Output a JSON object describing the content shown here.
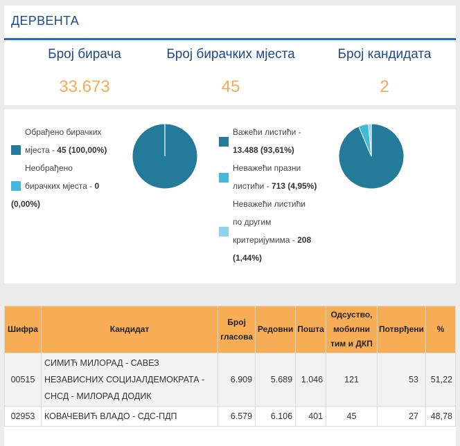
{
  "header": {
    "title": "ДЕРВЕНТА"
  },
  "stats": [
    {
      "label": "Број бирача",
      "value": "33.673"
    },
    {
      "label": "Број бирачких мјеста",
      "value": "45"
    },
    {
      "label": "Број кандидата",
      "value": "2"
    }
  ],
  "colors": {
    "dark": "#247a99",
    "mid": "#43b8da",
    "light": "#8ed3ea",
    "header_bg": "#f6ad56",
    "accent_value": "#f5a952",
    "title_blue": "#1d4a8c"
  },
  "pie1": {
    "legend": [
      {
        "line1": "Обрађено бирачких",
        "line2_text": "мјеста - ",
        "line2_bold": "45 (100,00%)",
        "line3": "",
        "line4": ""
      },
      {
        "line1": "Необрађено",
        "line2_text": "бирачких мјеста - ",
        "line2_bold": "0",
        "line3": "(0,00%)",
        "line4": ""
      }
    ],
    "values": [
      100.0,
      0.0
    ]
  },
  "pie2": {
    "legend": [
      {
        "line1": "Важећи листићи -",
        "line2_bold": "13.488 (93,61%)"
      },
      {
        "line1": "Неважећи празни",
        "line2_text": "листићи - ",
        "line2_bold": "713 (4,95%)"
      },
      {
        "line1": "Неважећи листићи",
        "line2_text": "по другим",
        "line3_text": "критеријумима - ",
        "line3_bold": "208",
        "line4": "(1,44%)"
      }
    ],
    "values": [
      93.61,
      4.95,
      1.44
    ]
  },
  "table": {
    "headers": {
      "code": "Шифра",
      "candidate": "Кандидат",
      "votes_l1": "Број",
      "votes_l2": "гласова",
      "regular": "Редовни",
      "post": "Пошта",
      "absent_l1": "Одсуство,",
      "absent_l2": "мобилни",
      "absent_l3": "тим и ДКП",
      "confirmed": "Потврђени",
      "percent": "%"
    },
    "rows": [
      {
        "code": "00515",
        "name_l1": "СИМИЋ МИЛОРАД - САВЕЗ",
        "name_l2": "НЕЗАВИСНИХ СОЦИЈАЛДЕМОКРАТА -",
        "name_l3": "СНСД - МИЛОРАД ДОДИК",
        "votes": "6.909",
        "regular": "5.689",
        "post": "1.046",
        "absent": "121",
        "confirmed": "53",
        "percent": "51,22"
      },
      {
        "code": "02953",
        "name_l1": "КОВАЧЕВИЋ ВЛАДО - СДС-ПДП",
        "votes": "6.579",
        "regular": "6.106",
        "post": "401",
        "absent": "45",
        "confirmed": "27",
        "percent": "48,78"
      }
    ]
  }
}
